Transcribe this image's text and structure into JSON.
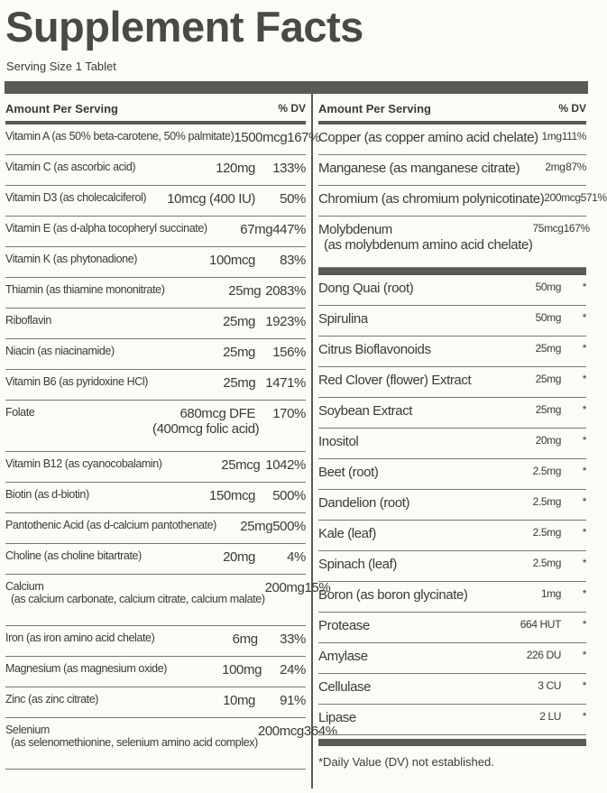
{
  "title": "Supplement Facts",
  "serving_size": "Serving Size 1 Tablet",
  "left": {
    "header": {
      "amount": "Amount Per Serving",
      "dv": "% DV"
    },
    "rows": [
      {
        "name": "Vitamin A (as 50% beta-carotene, 50% palmitate)",
        "amount": "1500mcg",
        "dv": "167%"
      },
      {
        "name": "Vitamin C (as ascorbic acid)",
        "amount": "120mg",
        "dv": "133%"
      },
      {
        "name": "Vitamin D3 (as cholecalciferol)",
        "amount": "10mcg (400 IU)",
        "dv": "50%"
      },
      {
        "name": "Vitamin E (as d-alpha tocopheryl succinate)",
        "amount": "67mg",
        "dv": "447%"
      },
      {
        "name": "Vitamin K (as phytonadione)",
        "amount": "100mcg",
        "dv": "83%"
      },
      {
        "name": "Thiamin (as thiamine mononitrate)",
        "amount": "25mg",
        "dv": "2083%"
      },
      {
        "name": "Riboflavin",
        "amount": "25mg",
        "dv": "1923%"
      },
      {
        "name": "Niacin (as niacinamide)",
        "amount": "25mg",
        "dv": "156%"
      },
      {
        "name": "Vitamin B6 (as pyridoxine HCl)",
        "amount": "25mg",
        "dv": "1471%"
      },
      {
        "name": "Folate",
        "amount": "680mcg DFE",
        "dv": "170%",
        "amount_sub": "(400mcg folic acid)"
      },
      {
        "name": "Vitamin B12 (as cyanocobalamin)",
        "amount": "25mcg",
        "dv": "1042%"
      },
      {
        "name": "Biotin (as d-biotin)",
        "amount": "150mcg",
        "dv": "500%"
      },
      {
        "name": "Pantothenic Acid (as d-calcium pantothenate)",
        "amount": "25mg",
        "dv": "500%"
      },
      {
        "name": "Choline (as choline bitartrate)",
        "amount": "20mg",
        "dv": "4%"
      },
      {
        "name": "Calcium",
        "amount": "200mg",
        "dv": "15%",
        "sub": "(as calcium carbonate, calcium citrate, calcium malate)"
      },
      {
        "name": "Iron (as iron amino acid chelate)",
        "amount": "6mg",
        "dv": "33%"
      },
      {
        "name": "Magnesium (as magnesium oxide)",
        "amount": "100mg",
        "dv": "24%"
      },
      {
        "name": "Zinc (as zinc citrate)",
        "amount": "10mg",
        "dv": "91%"
      },
      {
        "name": "Selenium",
        "amount": "200mcg",
        "dv": "364%",
        "sub": "(as selenomethionine, selenium amino acid complex)"
      }
    ]
  },
  "right": {
    "header": {
      "amount": "Amount Per Serving",
      "dv": "% DV"
    },
    "rows": [
      {
        "name": "Copper (as copper amino acid chelate)",
        "amount": "1mg",
        "dv": "111%"
      },
      {
        "name": "Manganese (as manganese citrate)",
        "amount": "2mg",
        "dv": "87%"
      },
      {
        "name": "Chromium (as chromium polynicotinate)",
        "amount": "200mcg",
        "dv": "571%"
      },
      {
        "name": "Molybdenum",
        "amount": "75mcg",
        "dv": "167%",
        "sub": "(as molybdenum amino acid chelate)"
      }
    ],
    "rows2": [
      {
        "name": "Dong Quai (root)",
        "amount": "50mg",
        "dv": "*"
      },
      {
        "name": "Spirulina",
        "amount": "50mg",
        "dv": "*"
      },
      {
        "name": "Citrus Bioflavonoids",
        "amount": "25mg",
        "dv": "*"
      },
      {
        "name": "Red Clover (flower) Extract",
        "amount": "25mg",
        "dv": "*"
      },
      {
        "name": "Soybean Extract",
        "amount": "25mg",
        "dv": "*"
      },
      {
        "name": "Inositol",
        "amount": "20mg",
        "dv": "*"
      },
      {
        "name": "Beet (root)",
        "amount": "2.5mg",
        "dv": "*"
      },
      {
        "name": "Dandelion (root)",
        "amount": "2.5mg",
        "dv": "*"
      },
      {
        "name": "Kale (leaf)",
        "amount": "2.5mg",
        "dv": "*"
      },
      {
        "name": "Spinach (leaf)",
        "amount": "2.5mg",
        "dv": "*"
      },
      {
        "name": "Boron (as boron glycinate)",
        "amount": "1mg",
        "dv": "*"
      },
      {
        "name": "Protease",
        "amount": "664 HUT",
        "dv": "*"
      },
      {
        "name": "Amylase",
        "amount": "226 DU",
        "dv": "*"
      },
      {
        "name": "Cellulase",
        "amount": "3 CU",
        "dv": "*"
      },
      {
        "name": "Lipase",
        "amount": "2 LU",
        "dv": "*"
      }
    ],
    "footnote": "*Daily Value (DV) not established."
  }
}
